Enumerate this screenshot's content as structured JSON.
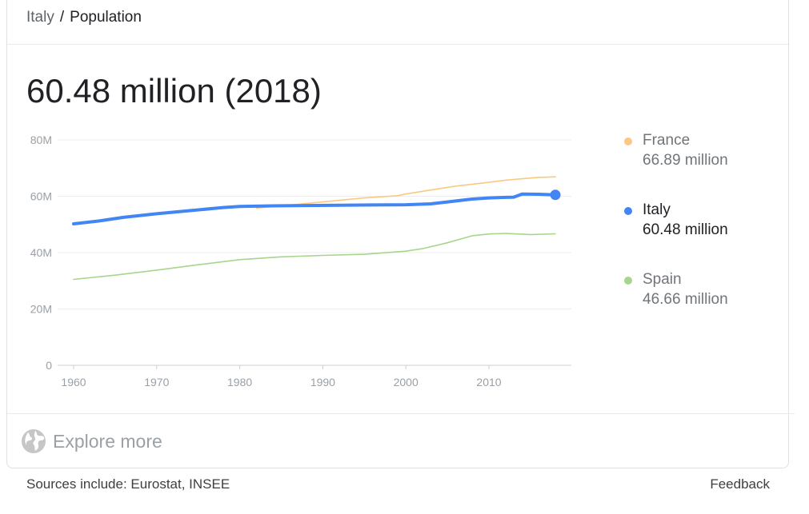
{
  "breadcrumb": {
    "root": "Italy",
    "separator": "/",
    "current": "Population"
  },
  "headline": "60.48 million (2018)",
  "legend": [
    {
      "name": "France",
      "value": "66.89 million",
      "color": "#f9c983",
      "state": "muted"
    },
    {
      "name": "Italy",
      "value": "60.48 million",
      "color": "#4285f4",
      "state": "active"
    },
    {
      "name": "Spain",
      "value": "46.66 million",
      "color": "#a8d58e",
      "state": "muted"
    }
  ],
  "explore": {
    "label": "Explore more",
    "icon": "globe-icon"
  },
  "footer": {
    "sources": "Sources include: Eurostat, INSEE",
    "feedback": "Feedback"
  },
  "chart_data": {
    "type": "line",
    "title": "",
    "xlabel": "",
    "ylabel": "",
    "xlim": [
      1960,
      2018
    ],
    "ylim": [
      0,
      80
    ],
    "x_ticks": [
      1960,
      1970,
      1980,
      1990,
      2000,
      2010
    ],
    "x_tick_labels": [
      "1960",
      "1970",
      "1980",
      "1990",
      "2000",
      "2010"
    ],
    "y_ticks": [
      0,
      20,
      40,
      60,
      80
    ],
    "y_tick_labels": [
      "0",
      "20M",
      "40M",
      "60M",
      "80M"
    ],
    "grid": "horizontal",
    "legend_position": "right",
    "series": [
      {
        "name": "France",
        "color": "#f9c983",
        "x": [
          1982,
          1985,
          1990,
          1995,
          1999,
          2000,
          2003,
          2006,
          2009,
          2012,
          2014,
          2016,
          2018
        ],
        "values": [
          55.8,
          56.6,
          58.0,
          59.4,
          60.2,
          60.8,
          62.2,
          63.6,
          64.6,
          65.7,
          66.2,
          66.7,
          66.89
        ]
      },
      {
        "name": "Italy",
        "color": "#4285f4",
        "x": [
          1960,
          1963,
          1966,
          1970,
          1974,
          1978,
          1980,
          1984,
          1988,
          1992,
          1996,
          2000,
          2003,
          2005,
          2008,
          2010,
          2013,
          2014,
          2016,
          2018
        ],
        "values": [
          50.2,
          51.2,
          52.5,
          53.8,
          54.9,
          56.0,
          56.4,
          56.6,
          56.7,
          56.8,
          56.9,
          57.0,
          57.3,
          58.0,
          59.0,
          59.4,
          59.7,
          60.8,
          60.7,
          60.48
        ]
      },
      {
        "name": "Spain",
        "color": "#a8d58e",
        "x": [
          1960,
          1965,
          1970,
          1975,
          1980,
          1985,
          1990,
          1995,
          2000,
          2002,
          2005,
          2008,
          2010,
          2012,
          2015,
          2018
        ],
        "values": [
          30.5,
          32.0,
          33.8,
          35.7,
          37.5,
          38.5,
          39.0,
          39.4,
          40.5,
          41.4,
          43.5,
          46.0,
          46.6,
          46.8,
          46.4,
          46.66
        ]
      }
    ],
    "highlight": {
      "series": "Italy",
      "x": 2018,
      "value": 60.48
    }
  }
}
